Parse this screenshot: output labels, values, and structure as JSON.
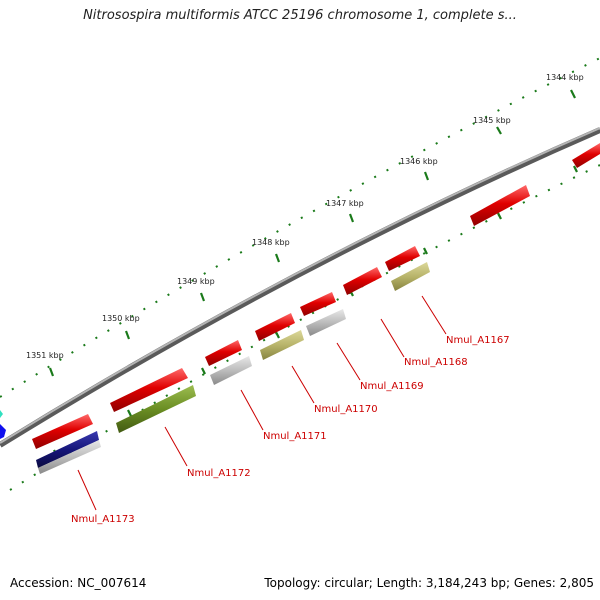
{
  "title": "Nitrosospira multiformis ATCC 25196 chromosome 1, complete s...",
  "footer": {
    "accession": "Accession: NC_007614",
    "summary": "Topology: circular; Length: 3,184,243 bp; Genes: 2,805"
  },
  "scale_labels": [
    "1344 kbp",
    "1345 kbp",
    "1346 kbp",
    "1347 kbp",
    "1348 kbp",
    "1349 kbp",
    "1350 kbp",
    "1351 kbp"
  ],
  "gene_labels": [
    "Nmul_A1167",
    "Nmul_A1168",
    "Nmul_A1169",
    "Nmul_A1170",
    "Nmul_A1171",
    "Nmul_A1172",
    "Nmul_A1173"
  ],
  "colors": {
    "backbone": "#8c8c8c",
    "gene_red": "#e00000",
    "olive_light": "#b8b46a",
    "olive_dark": "#6b8e23",
    "gray_feature": "#bcbcbc",
    "navy_feature": "#16167a",
    "tick_green": "#1a7a1a",
    "label_red": "#cc0000"
  }
}
